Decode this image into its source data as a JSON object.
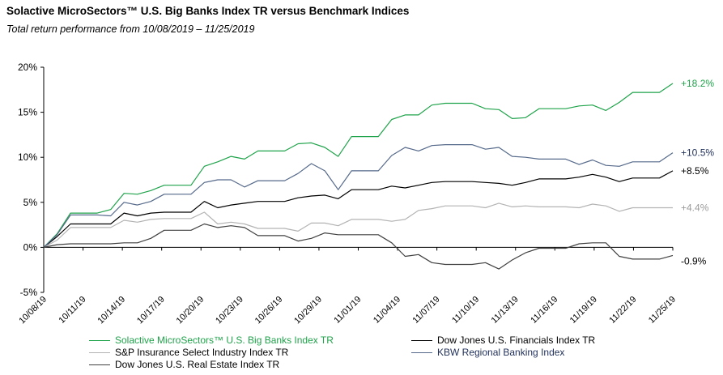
{
  "chart_data": {
    "type": "line",
    "title": "Solactive MicroSectors™ U.S. Big Banks Index TR versus Benchmark Indices",
    "subtitle": "Total return performance from 10/08/2019 – 11/25/2019",
    "xlabel": "",
    "ylabel": "",
    "ylim": [
      -5,
      20
    ],
    "y_ticks": [
      -5,
      0,
      5,
      10,
      15,
      20
    ],
    "y_tick_labels": [
      "-5%",
      "0%",
      "5%",
      "10%",
      "15%",
      "20%"
    ],
    "x_tick_labels": [
      "10/08/19",
      "10/11/19",
      "10/14/19",
      "10/17/19",
      "10/20/19",
      "10/23/19",
      "10/26/19",
      "10/29/19",
      "11/01/19",
      "11/04/19",
      "11/07/19",
      "11/10/19",
      "11/13/19",
      "11/16/19",
      "11/19/19",
      "11/22/19",
      "11/25/19"
    ],
    "x_start": "10/08/2019",
    "x_end": "11/25/2019",
    "grid": false,
    "legend_position": "bottom",
    "series": [
      {
        "name": "Solactive MicroSectors™ U.S. Big Banks Index TR",
        "color": "#1fa34a",
        "end_label": "+18.2%",
        "values": [
          0,
          1.5,
          3.8,
          3.8,
          3.8,
          4.2,
          6.0,
          5.9,
          6.3,
          6.9,
          6.9,
          6.9,
          9.0,
          9.5,
          10.1,
          9.8,
          10.7,
          10.7,
          10.7,
          11.5,
          11.6,
          11.1,
          10.1,
          12.3,
          12.3,
          12.3,
          14.2,
          14.7,
          14.7,
          15.8,
          16.0,
          16.0,
          16.0,
          15.4,
          15.3,
          14.3,
          14.4,
          15.4,
          15.4,
          15.4,
          15.7,
          15.8,
          15.2,
          16.1,
          17.2,
          17.2,
          17.2,
          18.2
        ]
      },
      {
        "name": "Dow Jones U.S. Financials Index TR",
        "color": "#000000",
        "end_label": "+8.5%",
        "values": [
          0,
          1.2,
          2.6,
          2.6,
          2.6,
          2.6,
          3.8,
          3.5,
          3.8,
          3.9,
          3.9,
          3.9,
          5.1,
          4.4,
          4.7,
          4.9,
          5.1,
          5.1,
          5.1,
          5.5,
          5.7,
          5.8,
          5.4,
          6.4,
          6.4,
          6.4,
          6.8,
          6.6,
          6.9,
          7.2,
          7.3,
          7.3,
          7.3,
          7.2,
          7.1,
          6.9,
          7.2,
          7.6,
          7.6,
          7.6,
          7.8,
          8.1,
          7.8,
          7.3,
          7.7,
          7.7,
          7.7,
          8.5
        ]
      },
      {
        "name": "S&P Insurance Select Industry Index TR",
        "color": "#b3b3b3",
        "end_label": "+4.4%",
        "values": [
          0,
          0.8,
          2.2,
          2.2,
          2.2,
          2.2,
          3.0,
          2.8,
          3.1,
          3.2,
          3.2,
          3.2,
          3.9,
          2.6,
          2.8,
          2.6,
          2.1,
          2.1,
          2.1,
          1.8,
          2.7,
          2.7,
          2.4,
          3.1,
          3.1,
          3.1,
          2.9,
          3.1,
          4.1,
          4.3,
          4.6,
          4.6,
          4.6,
          4.4,
          4.9,
          4.5,
          4.6,
          4.5,
          4.5,
          4.5,
          4.4,
          4.8,
          4.6,
          4.0,
          4.4,
          4.4,
          4.4,
          4.4
        ]
      },
      {
        "name": "KBW Regional Banking Index",
        "color": "#55698a",
        "end_label": "+10.5%",
        "values": [
          0,
          1.4,
          3.6,
          3.6,
          3.6,
          3.5,
          5.0,
          4.7,
          5.1,
          5.9,
          5.9,
          5.9,
          7.2,
          7.5,
          7.5,
          6.7,
          7.4,
          7.4,
          7.4,
          8.2,
          9.3,
          8.5,
          6.4,
          8.5,
          8.5,
          8.5,
          10.2,
          11.1,
          10.7,
          11.3,
          11.4,
          11.4,
          11.4,
          10.9,
          11.1,
          10.1,
          10.0,
          9.8,
          9.8,
          9.8,
          9.2,
          9.7,
          9.1,
          9.0,
          9.5,
          9.5,
          9.5,
          10.5
        ]
      },
      {
        "name": "Dow Jones U.S. Real Estate Index TR",
        "color": "#404040",
        "end_label": "-0.9%",
        "values": [
          0,
          0.3,
          0.4,
          0.4,
          0.4,
          0.4,
          0.5,
          0.5,
          1.0,
          1.9,
          1.9,
          1.9,
          2.6,
          2.2,
          2.4,
          2.2,
          1.3,
          1.3,
          1.3,
          0.7,
          1.0,
          1.6,
          1.4,
          1.4,
          1.4,
          1.4,
          0.5,
          -1.0,
          -0.8,
          -1.7,
          -1.9,
          -1.9,
          -1.9,
          -1.7,
          -2.4,
          -1.4,
          -0.6,
          -0.1,
          -0.1,
          -0.1,
          0.4,
          0.5,
          0.5,
          -1.0,
          -1.3,
          -1.3,
          -1.3,
          -0.9
        ]
      }
    ]
  }
}
